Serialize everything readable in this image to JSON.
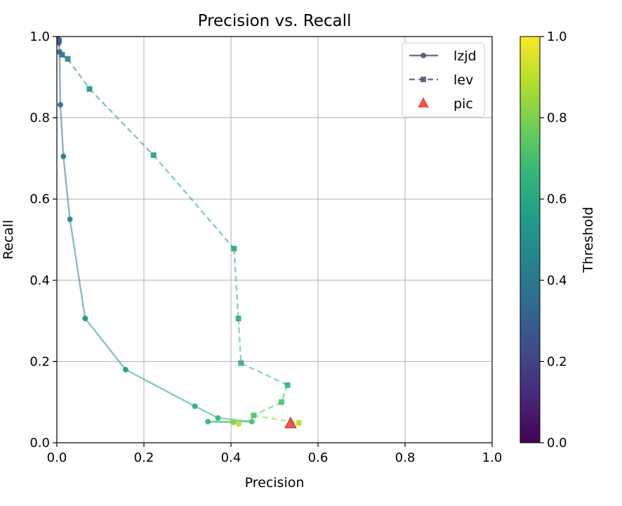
{
  "chart_data": {
    "type": "scatter",
    "title": "Precision vs. Recall",
    "xlabel": "Precision",
    "ylabel": "Recall",
    "xlim": [
      0,
      1
    ],
    "ylim": [
      0,
      1
    ],
    "xticks": [
      "0.0",
      "0.2",
      "0.4",
      "0.6",
      "0.8",
      "1.0"
    ],
    "yticks": [
      "0.0",
      "0.2",
      "0.4",
      "0.6",
      "0.8",
      "1.0"
    ],
    "grid": true,
    "legend_position": "top-right",
    "colorbar": {
      "label": "Threshold",
      "range": [
        0,
        1
      ],
      "ticks": [
        "0.0",
        "0.2",
        "0.4",
        "0.6",
        "0.8",
        "1.0"
      ],
      "colormap": "viridis"
    },
    "series": [
      {
        "name": "lzjd",
        "style": "solid",
        "marker": "circle",
        "points": [
          {
            "x": 0.002,
            "y": 0.995,
            "t": 0.2
          },
          {
            "x": 0.004,
            "y": 0.985,
            "t": 0.25
          },
          {
            "x": 0.006,
            "y": 0.962,
            "t": 0.3
          },
          {
            "x": 0.008,
            "y": 0.832,
            "t": 0.35
          },
          {
            "x": 0.015,
            "y": 0.705,
            "t": 0.4
          },
          {
            "x": 0.03,
            "y": 0.55,
            "t": 0.45
          },
          {
            "x": 0.065,
            "y": 0.306,
            "t": 0.5
          },
          {
            "x": 0.158,
            "y": 0.18,
            "t": 0.55
          },
          {
            "x": 0.317,
            "y": 0.09,
            "t": 0.6
          },
          {
            "x": 0.37,
            "y": 0.061,
            "t": 0.65
          },
          {
            "x": 0.448,
            "y": 0.052,
            "t": 0.7
          },
          {
            "x": 0.347,
            "y": 0.052,
            "t": 0.65
          },
          {
            "x": 0.405,
            "y": 0.05,
            "t": 0.8
          },
          {
            "x": 0.418,
            "y": 0.046,
            "t": 0.9
          }
        ]
      },
      {
        "name": "lev",
        "style": "dashed",
        "marker": "square",
        "points": [
          {
            "x": 0.005,
            "y": 0.99,
            "t": 0.3
          },
          {
            "x": 0.012,
            "y": 0.955,
            "t": 0.4
          },
          {
            "x": 0.025,
            "y": 0.945,
            "t": 0.45
          },
          {
            "x": 0.075,
            "y": 0.871,
            "t": 0.5
          },
          {
            "x": 0.222,
            "y": 0.708,
            "t": 0.55
          },
          {
            "x": 0.407,
            "y": 0.478,
            "t": 0.6
          },
          {
            "x": 0.417,
            "y": 0.306,
            "t": 0.62
          },
          {
            "x": 0.423,
            "y": 0.196,
            "t": 0.64
          },
          {
            "x": 0.53,
            "y": 0.142,
            "t": 0.66
          },
          {
            "x": 0.516,
            "y": 0.1,
            "t": 0.7
          },
          {
            "x": 0.452,
            "y": 0.067,
            "t": 0.72
          },
          {
            "x": 0.556,
            "y": 0.049,
            "t": 0.9
          }
        ]
      },
      {
        "name": "pic",
        "style": "none",
        "marker": "triangle",
        "color": "#e8392c",
        "points": [
          {
            "x": 0.537,
            "y": 0.047
          }
        ]
      }
    ]
  }
}
